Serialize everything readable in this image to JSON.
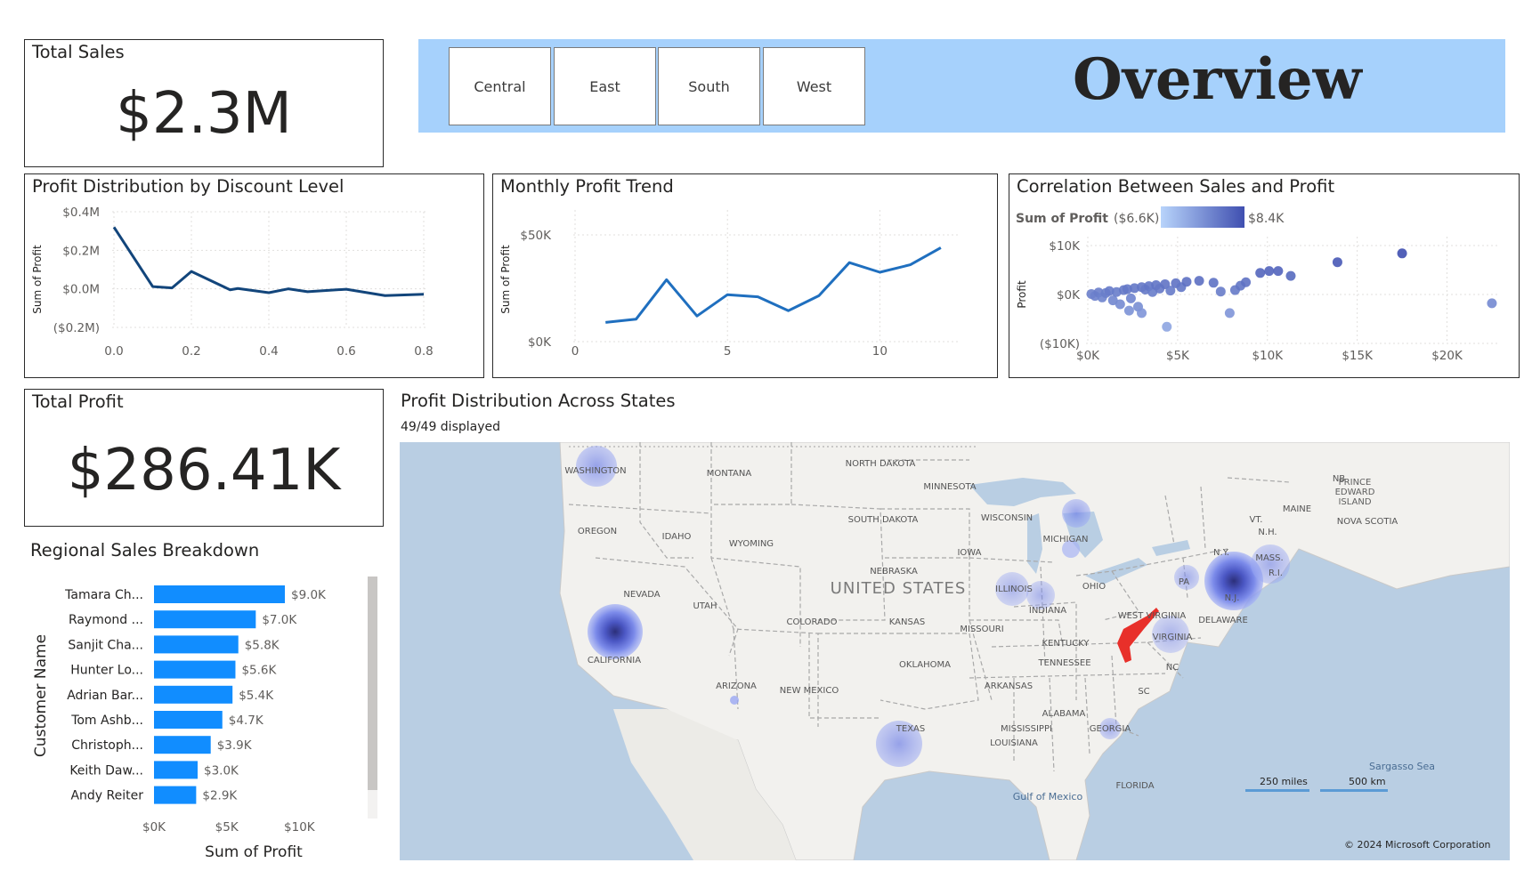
{
  "kpis": {
    "total_sales": {
      "title": "Total Sales",
      "value": "$2.3M"
    },
    "total_profit": {
      "title": "Total Profit",
      "value": "$286.41K"
    }
  },
  "banner": {
    "slicers": [
      "Central",
      "East",
      "South",
      "West"
    ],
    "title": "Overview",
    "color": "#a6d1fc"
  },
  "discount_chart": {
    "title": "Profit Distribution by Discount Level",
    "ylabel": "Sum of Profit",
    "y_ticks": [
      "$0.4M",
      "$0.2M",
      "$0.0M",
      "($0.2M)"
    ],
    "x_ticks": [
      "0.0",
      "0.2",
      "0.4",
      "0.6",
      "0.8"
    ]
  },
  "monthly_chart": {
    "title": "Monthly Profit Trend",
    "ylabel": "Sum of Profit",
    "y_ticks": [
      "$50K",
      "$0K"
    ],
    "x_ticks": [
      "0",
      "5",
      "10"
    ]
  },
  "scatter_chart": {
    "title": "Correlation Between Sales and Profit",
    "legend_label": "Sum of Profit",
    "legend_min": "($6.6K)",
    "legend_max": "$8.4K",
    "ylabel": "Profit",
    "y_ticks": [
      "$10K",
      "$0K",
      "($10K)"
    ],
    "x_ticks": [
      "$0K",
      "$5K",
      "$10K",
      "$15K",
      "$20K"
    ]
  },
  "bar_chart": {
    "title": "Regional Sales Breakdown",
    "ylabel": "Customer Name",
    "xlabel": "Sum of Profit",
    "x_ticks": [
      "$0K",
      "$5K",
      "$10K"
    ],
    "bar_color": "#118dff"
  },
  "map": {
    "title": "Profit Distribution Across States",
    "subtitle": "49/49 displayed",
    "country_label": "UNITED STATES",
    "states": [
      {
        "name": "WASHINGTON",
        "id": "wa"
      },
      {
        "name": "MONTANA",
        "id": "mt"
      },
      {
        "name": "NORTH DAKOTA",
        "id": "nd"
      },
      {
        "name": "MINNESOTA",
        "id": "mn"
      },
      {
        "name": "OREGON",
        "id": "or"
      },
      {
        "name": "IDAHO",
        "id": "id"
      },
      {
        "name": "WYOMING",
        "id": "wy"
      },
      {
        "name": "SOUTH DAKOTA",
        "id": "sd"
      },
      {
        "name": "WISCONSIN",
        "id": "wi"
      },
      {
        "name": "MICHIGAN",
        "id": "mi"
      },
      {
        "name": "IOWA",
        "id": "ia"
      },
      {
        "name": "NEBRASKA",
        "id": "ne"
      },
      {
        "name": "NEVADA",
        "id": "nv"
      },
      {
        "name": "UTAH",
        "id": "ut"
      },
      {
        "name": "COLORADO",
        "id": "co"
      },
      {
        "name": "KANSAS",
        "id": "ks"
      },
      {
        "name": "ILLINOIS",
        "id": "il"
      },
      {
        "name": "INDIANA",
        "id": "in"
      },
      {
        "name": "OHIO",
        "id": "oh"
      },
      {
        "name": "PA",
        "id": "pa"
      },
      {
        "name": "N.Y.",
        "id": "ny"
      },
      {
        "name": "VT.",
        "id": "vt"
      },
      {
        "name": "N.H.",
        "id": "nh"
      },
      {
        "name": "MAINE",
        "id": "me"
      },
      {
        "name": "MASS.",
        "id": "ma"
      },
      {
        "name": "R.I.",
        "id": "ri"
      },
      {
        "name": "N.J.",
        "id": "nj"
      },
      {
        "name": "DELAWARE",
        "id": "de"
      },
      {
        "name": "WEST VIRGINIA",
        "id": "wv"
      },
      {
        "name": "VIRGINIA",
        "id": "va"
      },
      {
        "name": "KENTUCKY",
        "id": "ky"
      },
      {
        "name": "MISSOURI",
        "id": "mo"
      },
      {
        "name": "CALIFORNIA",
        "id": "ca"
      },
      {
        "name": "ARIZONA",
        "id": "az"
      },
      {
        "name": "NEW MEXICO",
        "id": "nm"
      },
      {
        "name": "OKLAHOMA",
        "id": "ok"
      },
      {
        "name": "ARKANSAS",
        "id": "ar"
      },
      {
        "name": "TENNESSEE",
        "id": "tn"
      },
      {
        "name": "NC",
        "id": "nc"
      },
      {
        "name": "SC",
        "id": "sc"
      },
      {
        "name": "ALABAMA",
        "id": "al"
      },
      {
        "name": "MISSISSIPPI",
        "id": "ms"
      },
      {
        "name": "GEORGIA",
        "id": "ga"
      },
      {
        "name": "LOUISIANA",
        "id": "la"
      },
      {
        "name": "TEXAS",
        "id": "tx"
      },
      {
        "name": "FLORIDA",
        "id": "fl"
      },
      {
        "name": "NB",
        "id": "nb"
      },
      {
        "name": "PRINCE EDWARD ISLAND",
        "id": "pei"
      },
      {
        "name": "NOVA SCOTIA",
        "id": "ns"
      }
    ],
    "water_labels": {
      "gulf": "Gulf of Mexico",
      "sargasso": "Sargasso Sea"
    },
    "scale_miles": "250 miles",
    "scale_km": "500 km",
    "copyright": "© 2024 Microsoft Corporation"
  },
  "chart_data": [
    {
      "type": "line",
      "title": "Profit Distribution by Discount Level",
      "xlabel": "",
      "ylabel": "Sum of Profit",
      "x": [
        0.0,
        0.1,
        0.15,
        0.2,
        0.3,
        0.32,
        0.4,
        0.45,
        0.5,
        0.6,
        0.7,
        0.8
      ],
      "series": [
        {
          "values": [
            320000,
            12000,
            5000,
            90000,
            -5000,
            2000,
            -20000,
            0,
            -15000,
            -2000,
            -35000,
            -28000
          ]
        }
      ],
      "xlim": [
        0,
        0.8
      ],
      "ylim": [
        -200000,
        400000
      ]
    },
    {
      "type": "line",
      "title": "Monthly Profit Trend",
      "xlabel": "",
      "ylabel": "Sum of Profit",
      "x": [
        1,
        2,
        3,
        4,
        5,
        6,
        7,
        8,
        9,
        10,
        11,
        12
      ],
      "series": [
        {
          "values": [
            9000,
            10500,
            29000,
            12000,
            22000,
            21000,
            14500,
            21500,
            37000,
            32500,
            36000,
            44000
          ]
        }
      ],
      "xlim": [
        0,
        12.5
      ],
      "ylim": [
        0,
        50000
      ]
    },
    {
      "type": "scatter",
      "title": "Correlation Between Sales and Profit",
      "xlabel": "",
      "ylabel": "Profit",
      "legend": {
        "label": "Sum of Profit",
        "min": -6600,
        "max": 8400,
        "position": "top-left"
      },
      "points": [
        {
          "x": 200,
          "y": 100
        },
        {
          "x": 400,
          "y": -300
        },
        {
          "x": 600,
          "y": 400
        },
        {
          "x": 800,
          "y": -600
        },
        {
          "x": 1000,
          "y": 300
        },
        {
          "x": 1200,
          "y": 700
        },
        {
          "x": 1400,
          "y": -1200
        },
        {
          "x": 1600,
          "y": 500
        },
        {
          "x": 1800,
          "y": -2000
        },
        {
          "x": 2000,
          "y": 900
        },
        {
          "x": 2200,
          "y": 1100
        },
        {
          "x": 2400,
          "y": -800
        },
        {
          "x": 2600,
          "y": 1300
        },
        {
          "x": 2800,
          "y": -2500
        },
        {
          "x": 3000,
          "y": 1500
        },
        {
          "x": 3200,
          "y": 1000
        },
        {
          "x": 3400,
          "y": 1700
        },
        {
          "x": 3600,
          "y": 500
        },
        {
          "x": 3800,
          "y": 1900
        },
        {
          "x": 4000,
          "y": 1200
        },
        {
          "x": 4300,
          "y": 2100
        },
        {
          "x": 4600,
          "y": 800
        },
        {
          "x": 4900,
          "y": 2300
        },
        {
          "x": 5200,
          "y": 1500
        },
        {
          "x": 5500,
          "y": 2600
        },
        {
          "x": 6200,
          "y": 2800
        },
        {
          "x": 7000,
          "y": 2400
        },
        {
          "x": 7400,
          "y": 600
        },
        {
          "x": 8200,
          "y": 900
        },
        {
          "x": 8500,
          "y": 1800
        },
        {
          "x": 8800,
          "y": 2500
        },
        {
          "x": 9600,
          "y": 4400
        },
        {
          "x": 10100,
          "y": 4800
        },
        {
          "x": 10600,
          "y": 4800
        },
        {
          "x": 11300,
          "y": 3800
        },
        {
          "x": 13900,
          "y": 6600
        },
        {
          "x": 17500,
          "y": 8400
        },
        {
          "x": 3000,
          "y": -3800
        },
        {
          "x": 2300,
          "y": -3300
        },
        {
          "x": 4400,
          "y": -6600
        },
        {
          "x": 7900,
          "y": -3800
        },
        {
          "x": 22500,
          "y": -1800
        }
      ],
      "xlim": [
        0,
        22800
      ],
      "ylim": [
        -10000,
        10000
      ]
    },
    {
      "type": "bar",
      "orientation": "horizontal",
      "title": "Regional Sales Breakdown",
      "xlabel": "Sum of Profit",
      "ylabel": "Customer Name",
      "categories": [
        "Tamara Ch...",
        "Raymond ...",
        "Sanjit Cha...",
        "Hunter Lo...",
        "Adrian Bar...",
        "Tom Ashb...",
        "Christoph...",
        "Keith Daw...",
        "Andy Reiter"
      ],
      "values": [
        9000,
        7000,
        5800,
        5600,
        5400,
        4700,
        3900,
        3000,
        2900
      ],
      "labels": [
        "$9.0K",
        "$7.0K",
        "$5.8K",
        "$5.6K",
        "$5.4K",
        "$4.7K",
        "$3.9K",
        "$3.0K",
        "$2.9K"
      ],
      "xlim": [
        0,
        12000
      ]
    }
  ]
}
